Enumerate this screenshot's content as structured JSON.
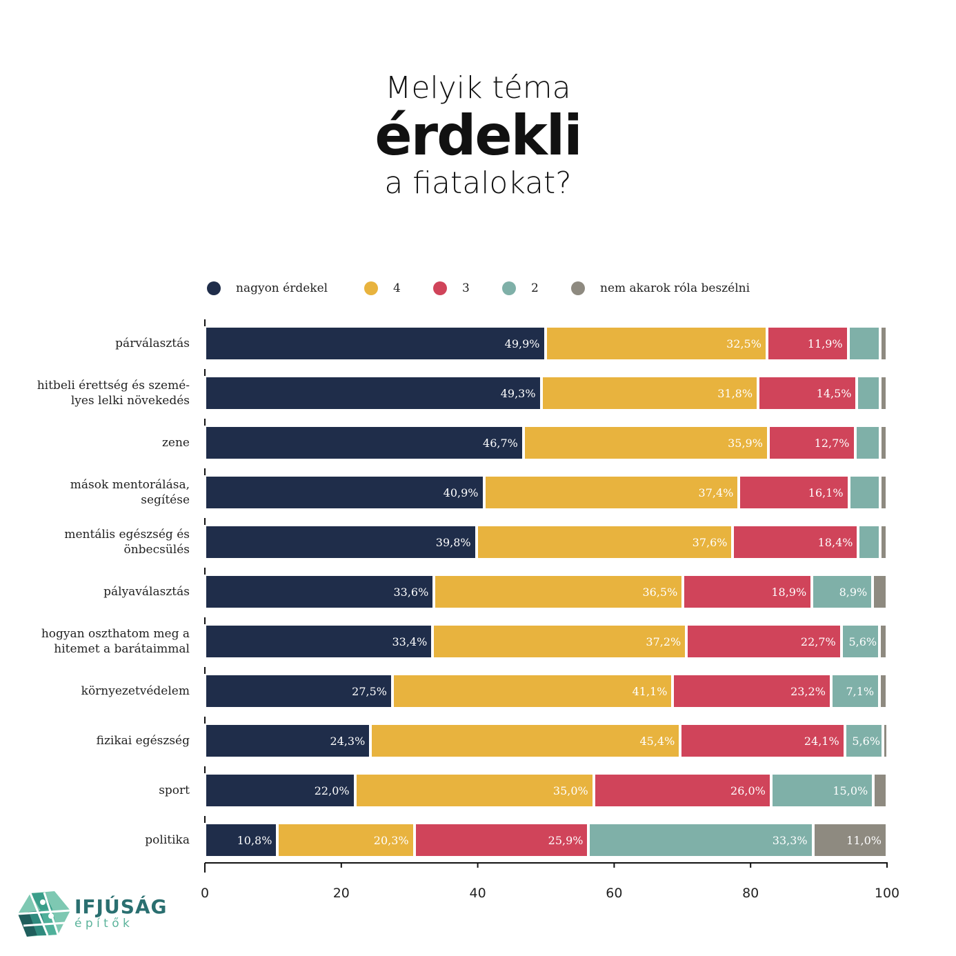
{
  "title": {
    "line1": "Melyik téma",
    "line2": "érdekli",
    "line3": "a fiatalokat?"
  },
  "logo": {
    "name": "IFJÚSÁG",
    "sub": "é p í t ő k"
  },
  "chart_data": {
    "type": "bar",
    "orientation": "horizontal-stacked",
    "xlim": [
      0,
      100
    ],
    "xticks": [
      "0",
      "20",
      "40",
      "60",
      "80",
      "100"
    ],
    "legend_position": "top",
    "series": [
      {
        "name": "nagyon érdekel",
        "color": "#1f2d4a"
      },
      {
        "name": "4",
        "color": "#e8b33e"
      },
      {
        "name": "3",
        "color": "#d0445a"
      },
      {
        "name": "2",
        "color": "#7fb0a8"
      },
      {
        "name": "nem akarok róla beszélni",
        "color": "#8e8a80"
      }
    ],
    "categories": [
      {
        "label": "párválasztás",
        "values": [
          49.9,
          32.5,
          11.9,
          4.7,
          1.0
        ],
        "labels": [
          "49,9%",
          "32,5%",
          "11,9%",
          "",
          ""
        ]
      },
      {
        "label": "hitbeli érettség és szemé-\nlyes lelki növekedés",
        "values": [
          49.3,
          31.8,
          14.5,
          3.4,
          1.0
        ],
        "labels": [
          "49,3%",
          "31,8%",
          "14,5%",
          "",
          ""
        ]
      },
      {
        "label": "zene",
        "values": [
          46.7,
          35.9,
          12.7,
          3.7,
          1.0
        ],
        "labels": [
          "46,7%",
          "35,9%",
          "12,7%",
          "",
          ""
        ]
      },
      {
        "label": "mások mentorálása,\nsegítése",
        "values": [
          40.9,
          37.4,
          16.1,
          4.6,
          1.0
        ],
        "labels": [
          "40,9%",
          "37,4%",
          "16,1%",
          "",
          ""
        ]
      },
      {
        "label": "mentális egészség és\nönbecsülés",
        "values": [
          39.8,
          37.6,
          18.4,
          3.2,
          1.0
        ],
        "labels": [
          "39,8%",
          "37,6%",
          "18,4%",
          "",
          ""
        ]
      },
      {
        "label": "pályaválasztás",
        "values": [
          33.6,
          36.5,
          18.9,
          8.9,
          2.1
        ],
        "labels": [
          "33,6%",
          "36,5%",
          "18,9%",
          "8,9%",
          ""
        ]
      },
      {
        "label": "hogyan oszthatom meg a\nhitemet a barátaimmal",
        "values": [
          33.4,
          37.2,
          22.7,
          5.6,
          1.1
        ],
        "labels": [
          "33,4%",
          "37,2%",
          "22,7%",
          "5,6%",
          ""
        ]
      },
      {
        "label": "környezetvédelem",
        "values": [
          27.5,
          41.1,
          23.2,
          7.1,
          1.1
        ],
        "labels": [
          "27,5%",
          "41,1%",
          "23,2%",
          "7,1%",
          ""
        ]
      },
      {
        "label": "fizikai egészség",
        "values": [
          24.3,
          45.4,
          24.1,
          5.6,
          0.6
        ],
        "labels": [
          "24,3%",
          "45,4%",
          "24,1%",
          "5,6%",
          ""
        ]
      },
      {
        "label": "sport",
        "values": [
          22.0,
          35.0,
          26.0,
          15.0,
          2.0
        ],
        "labels": [
          "22,0%",
          "35,0%",
          "26,0%",
          "15,0%",
          ""
        ]
      },
      {
        "label": "politika",
        "values": [
          10.8,
          20.3,
          25.9,
          33.3,
          11.0
        ],
        "labels": [
          "10,8%",
          "20,3%",
          "25,9%",
          "33,3%",
          "11,0%"
        ]
      }
    ]
  }
}
